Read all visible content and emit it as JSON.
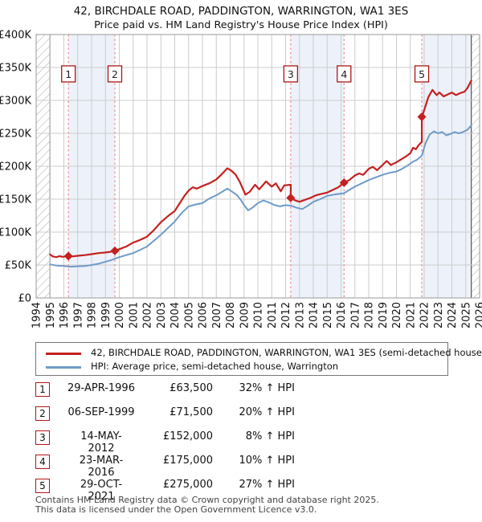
{
  "header": {
    "title": "42, BIRCHDALE ROAD, PADDINGTON, WARRINGTON, WA1 3ES",
    "subtitle": "Price paid vs. HM Land Registry's House Price Index (HPI)"
  },
  "chart_data": {
    "type": "line",
    "x_axis": {
      "min": 1994,
      "max": 2026,
      "ticks": [
        1994,
        1995,
        1996,
        1997,
        1998,
        1999,
        2000,
        2001,
        2002,
        2003,
        2004,
        2005,
        2006,
        2007,
        2008,
        2009,
        2010,
        2011,
        2012,
        2013,
        2014,
        2015,
        2016,
        2017,
        2018,
        2019,
        2020,
        2021,
        2022,
        2023,
        2024,
        2025,
        2026
      ]
    },
    "y_axis": {
      "min": 0,
      "max": 400,
      "unit": "GBP thousands",
      "ticks": [
        {
          "v": 0,
          "label": "£0"
        },
        {
          "v": 50,
          "label": "£50K"
        },
        {
          "v": 100,
          "label": "£100K"
        },
        {
          "v": 150,
          "label": "£150K"
        },
        {
          "v": 200,
          "label": "£200K"
        },
        {
          "v": 250,
          "label": "£250K"
        },
        {
          "v": 300,
          "label": "£300K"
        },
        {
          "v": 350,
          "label": "£350K"
        },
        {
          "v": 400,
          "label": "£400K"
        }
      ]
    },
    "colors": {
      "grid": "#cccccc",
      "band": "#edf2fa",
      "border": "#999999",
      "dashed": "#f08a8a",
      "hatch": "#aaaaaa",
      "hatch_edge": "#555555",
      "box_border": "#aa1515",
      "red": "#c42020",
      "blue": "#6f9bc9"
    },
    "bands": [
      [
        1996.33,
        1999.68
      ],
      [
        2012.37,
        2016.22
      ],
      [
        2021.83,
        2025.4
      ]
    ],
    "hatch_regions": [
      [
        1994,
        1995
      ],
      [
        2025.4,
        2026
      ]
    ],
    "series": [
      {
        "name": "price-paid-indexed",
        "color": "#c42020",
        "width": 2.2,
        "points": [
          [
            1995.0,
            66
          ],
          [
            1995.2,
            63
          ],
          [
            1995.45,
            62
          ],
          [
            1995.7,
            63.5
          ],
          [
            1995.9,
            62.5
          ],
          [
            1996.33,
            63.5
          ],
          [
            1996.6,
            63
          ],
          [
            1997.0,
            64
          ],
          [
            1997.5,
            65
          ],
          [
            1998.0,
            66.5
          ],
          [
            1998.5,
            68
          ],
          [
            1999.0,
            69
          ],
          [
            1999.35,
            70
          ],
          [
            1999.68,
            71.5
          ],
          [
            2000.0,
            74
          ],
          [
            2000.5,
            78
          ],
          [
            2001.0,
            84
          ],
          [
            2001.5,
            88
          ],
          [
            2002.0,
            93
          ],
          [
            2002.5,
            103
          ],
          [
            2003.0,
            115
          ],
          [
            2003.5,
            124
          ],
          [
            2004.0,
            132
          ],
          [
            2004.4,
            145
          ],
          [
            2004.7,
            155
          ],
          [
            2005.0,
            163
          ],
          [
            2005.3,
            168
          ],
          [
            2005.6,
            166
          ],
          [
            2006.0,
            170
          ],
          [
            2006.5,
            174
          ],
          [
            2007.0,
            180
          ],
          [
            2007.4,
            188
          ],
          [
            2007.8,
            197
          ],
          [
            2008.1,
            193
          ],
          [
            2008.4,
            187
          ],
          [
            2008.7,
            176
          ],
          [
            2009.1,
            157
          ],
          [
            2009.4,
            161
          ],
          [
            2009.8,
            172
          ],
          [
            2010.1,
            165
          ],
          [
            2010.6,
            177
          ],
          [
            2011.0,
            169
          ],
          [
            2011.3,
            174
          ],
          [
            2011.65,
            162
          ],
          [
            2011.9,
            171
          ],
          [
            2012.37,
            172
          ],
          [
            2012.37,
            152
          ],
          [
            2012.7,
            148
          ],
          [
            2013.0,
            146
          ],
          [
            2013.4,
            149
          ],
          [
            2013.8,
            152
          ],
          [
            2014.2,
            156
          ],
          [
            2014.6,
            158
          ],
          [
            2015.0,
            160
          ],
          [
            2015.4,
            164
          ],
          [
            2015.8,
            168
          ],
          [
            2016.22,
            175
          ],
          [
            2016.6,
            179
          ],
          [
            2017.0,
            186
          ],
          [
            2017.3,
            189
          ],
          [
            2017.6,
            187
          ],
          [
            2018.0,
            196
          ],
          [
            2018.3,
            199
          ],
          [
            2018.6,
            194
          ],
          [
            2019.0,
            202
          ],
          [
            2019.3,
            208
          ],
          [
            2019.6,
            202
          ],
          [
            2020.0,
            206
          ],
          [
            2020.3,
            210
          ],
          [
            2020.7,
            215
          ],
          [
            2021.0,
            220
          ],
          [
            2021.2,
            228
          ],
          [
            2021.4,
            226
          ],
          [
            2021.6,
            232
          ],
          [
            2021.83,
            237
          ],
          [
            2021.83,
            275
          ],
          [
            2022.0,
            285
          ],
          [
            2022.3,
            305
          ],
          [
            2022.6,
            316
          ],
          [
            2022.9,
            308
          ],
          [
            2023.1,
            312
          ],
          [
            2023.4,
            306
          ],
          [
            2023.7,
            309
          ],
          [
            2024.0,
            312
          ],
          [
            2024.3,
            308
          ],
          [
            2024.6,
            311
          ],
          [
            2024.9,
            313
          ],
          [
            2025.1,
            318
          ],
          [
            2025.4,
            330
          ]
        ]
      },
      {
        "name": "hpi-warrington-semi",
        "color": "#6f9bc9",
        "width": 2,
        "points": [
          [
            1995.0,
            51
          ],
          [
            1995.5,
            49
          ],
          [
            1996.0,
            48.5
          ],
          [
            1996.5,
            47.5
          ],
          [
            1997.0,
            48
          ],
          [
            1997.5,
            48.5
          ],
          [
            1998.0,
            50
          ],
          [
            1998.5,
            52
          ],
          [
            1999.0,
            55
          ],
          [
            1999.4,
            57.5
          ],
          [
            1999.68,
            59.5
          ],
          [
            2000.0,
            62
          ],
          [
            2000.5,
            65
          ],
          [
            2001.0,
            68
          ],
          [
            2001.5,
            73
          ],
          [
            2002.0,
            78
          ],
          [
            2002.5,
            87
          ],
          [
            2003.0,
            96
          ],
          [
            2003.5,
            106
          ],
          [
            2004.0,
            116
          ],
          [
            2004.5,
            129
          ],
          [
            2005.0,
            139
          ],
          [
            2005.5,
            142
          ],
          [
            2006.0,
            144
          ],
          [
            2006.5,
            151
          ],
          [
            2007.0,
            156
          ],
          [
            2007.4,
            161
          ],
          [
            2007.8,
            166
          ],
          [
            2008.1,
            162
          ],
          [
            2008.5,
            156
          ],
          [
            2008.8,
            148
          ],
          [
            2009.0,
            141
          ],
          [
            2009.3,
            133
          ],
          [
            2009.6,
            137
          ],
          [
            2010.0,
            144
          ],
          [
            2010.4,
            148
          ],
          [
            2010.8,
            145
          ],
          [
            2011.2,
            141
          ],
          [
            2011.6,
            139
          ],
          [
            2012.0,
            141
          ],
          [
            2012.4,
            140
          ],
          [
            2012.8,
            137
          ],
          [
            2013.2,
            135
          ],
          [
            2013.6,
            140
          ],
          [
            2014.0,
            146
          ],
          [
            2014.5,
            150
          ],
          [
            2015.0,
            155
          ],
          [
            2015.5,
            157
          ],
          [
            2016.22,
            159
          ],
          [
            2016.6,
            164
          ],
          [
            2017.0,
            169
          ],
          [
            2017.5,
            174
          ],
          [
            2018.0,
            179
          ],
          [
            2018.5,
            183
          ],
          [
            2019.0,
            187
          ],
          [
            2019.5,
            190
          ],
          [
            2020.0,
            192
          ],
          [
            2020.4,
            196
          ],
          [
            2020.8,
            201
          ],
          [
            2021.2,
            207
          ],
          [
            2021.5,
            210
          ],
          [
            2021.83,
            216
          ],
          [
            2022.1,
            235
          ],
          [
            2022.4,
            248
          ],
          [
            2022.7,
            253
          ],
          [
            2023.0,
            250
          ],
          [
            2023.3,
            252
          ],
          [
            2023.6,
            247
          ],
          [
            2023.9,
            249
          ],
          [
            2024.2,
            252
          ],
          [
            2024.5,
            250
          ],
          [
            2024.8,
            252
          ],
          [
            2025.1,
            255
          ],
          [
            2025.4,
            262
          ]
        ]
      }
    ],
    "sales": [
      {
        "n": "1",
        "x": 1996.33,
        "price_k": 63.5
      },
      {
        "n": "2",
        "x": 1999.68,
        "price_k": 71.5
      },
      {
        "n": "3",
        "x": 2012.37,
        "price_k": 152
      },
      {
        "n": "4",
        "x": 2016.22,
        "price_k": 175
      },
      {
        "n": "5",
        "x": 2021.83,
        "price_k": 275
      }
    ]
  },
  "legend": {
    "items": [
      {
        "label": "42, BIRCHDALE ROAD, PADDINGTON, WARRINGTON, WA1 3ES (semi-detached house)",
        "color": "#c42020"
      },
      {
        "label": "HPI: Average price, semi-detached house, Warrington",
        "color": "#6f9bc9"
      }
    ]
  },
  "table": {
    "rows": [
      {
        "num": "1",
        "date": "29-APR-1996",
        "price": "£63,500",
        "hpi": "32% ↑ HPI"
      },
      {
        "num": "2",
        "date": "06-SEP-1999",
        "price": "£71,500",
        "hpi": "20% ↑ HPI"
      },
      {
        "num": "3",
        "date": "14-MAY-2012",
        "price": "£152,000",
        "hpi": "8% ↑ HPI"
      },
      {
        "num": "4",
        "date": "23-MAR-2016",
        "price": "£175,000",
        "hpi": "10% ↑ HPI"
      },
      {
        "num": "5",
        "date": "29-OCT-2021",
        "price": "£275,000",
        "hpi": "27% ↑ HPI"
      }
    ]
  },
  "footer": {
    "line1": "Contains HM Land Registry data © Crown copyright and database right 2025.",
    "line2": "This data is licensed under the Open Government Licence v3.0."
  }
}
